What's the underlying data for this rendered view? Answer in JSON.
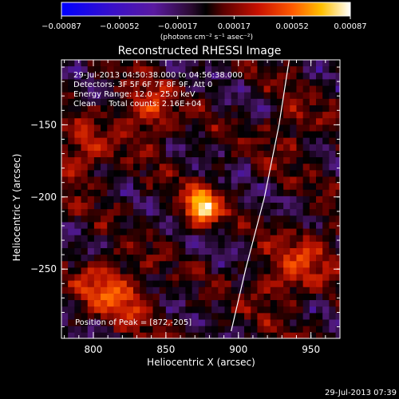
{
  "chart_data": {
    "type": "heatmap",
    "title": "Reconstructed RHESSI Image",
    "xlabel": "Heliocentric X (arcsec)",
    "ylabel": "Heliocentric Y (arcsec)",
    "xlim": [
      778,
      970
    ],
    "ylim": [
      -298,
      -105
    ],
    "x_ticks": [
      800,
      850,
      900,
      950
    ],
    "x_tick_labels": [
      "800",
      "850",
      "900",
      "950"
    ],
    "y_ticks": [
      -150,
      -200,
      -250
    ],
    "y_tick_labels": [
      "−150",
      "−200",
      "−250"
    ],
    "colorbar": {
      "range": [
        -0.00087,
        0.00087
      ],
      "ticks": [
        -0.00087,
        -0.00052,
        -0.00017,
        0.00017,
        0.00052,
        0.00087
      ],
      "tick_labels": [
        "−0.00087",
        "−0.00052",
        "−0.00017",
        "0.00017",
        "0.00052",
        "0.00087"
      ],
      "unit_label": "(photons cm⁻² s⁻¹ asec⁻²)",
      "colormap": "RHESSI blue-purple-black-red-yellow-white"
    },
    "annotations": [
      "29-Jul-2013 04:50:38.000 to 04:56:38.000",
      "Detectors: 3F 5F 6F 7F 8F 9F, Att 0",
      "Energy Range: 12.0 - 25.0 keV",
      "Clean     Total counts: 2.16E+04"
    ],
    "peak": {
      "label": "Position of Peak = [872,-205]",
      "x": 872,
      "y": -205
    },
    "sources": [
      {
        "x": 872,
        "y": -205,
        "intensity": 0.00087
      },
      {
        "x": 835,
        "y": -140,
        "intensity": 0.0004
      },
      {
        "x": 788,
        "y": -170,
        "intensity": 0.00035
      },
      {
        "x": 805,
        "y": -258,
        "intensity": 0.00035
      },
      {
        "x": 928,
        "y": -258,
        "intensity": 0.0003
      },
      {
        "x": 950,
        "y": -235,
        "intensity": 0.00028
      },
      {
        "x": 935,
        "y": -150,
        "intensity": 0.00022
      },
      {
        "x": 825,
        "y": -270,
        "intensity": 0.00025
      }
    ],
    "limb_curve": [
      [
        935,
        -105
      ],
      [
        928,
        -150
      ],
      [
        918,
        -200
      ],
      [
        905,
        -250
      ],
      [
        895,
        -293
      ]
    ],
    "footer_timestamp": "29-Jul-2013 07:39"
  }
}
